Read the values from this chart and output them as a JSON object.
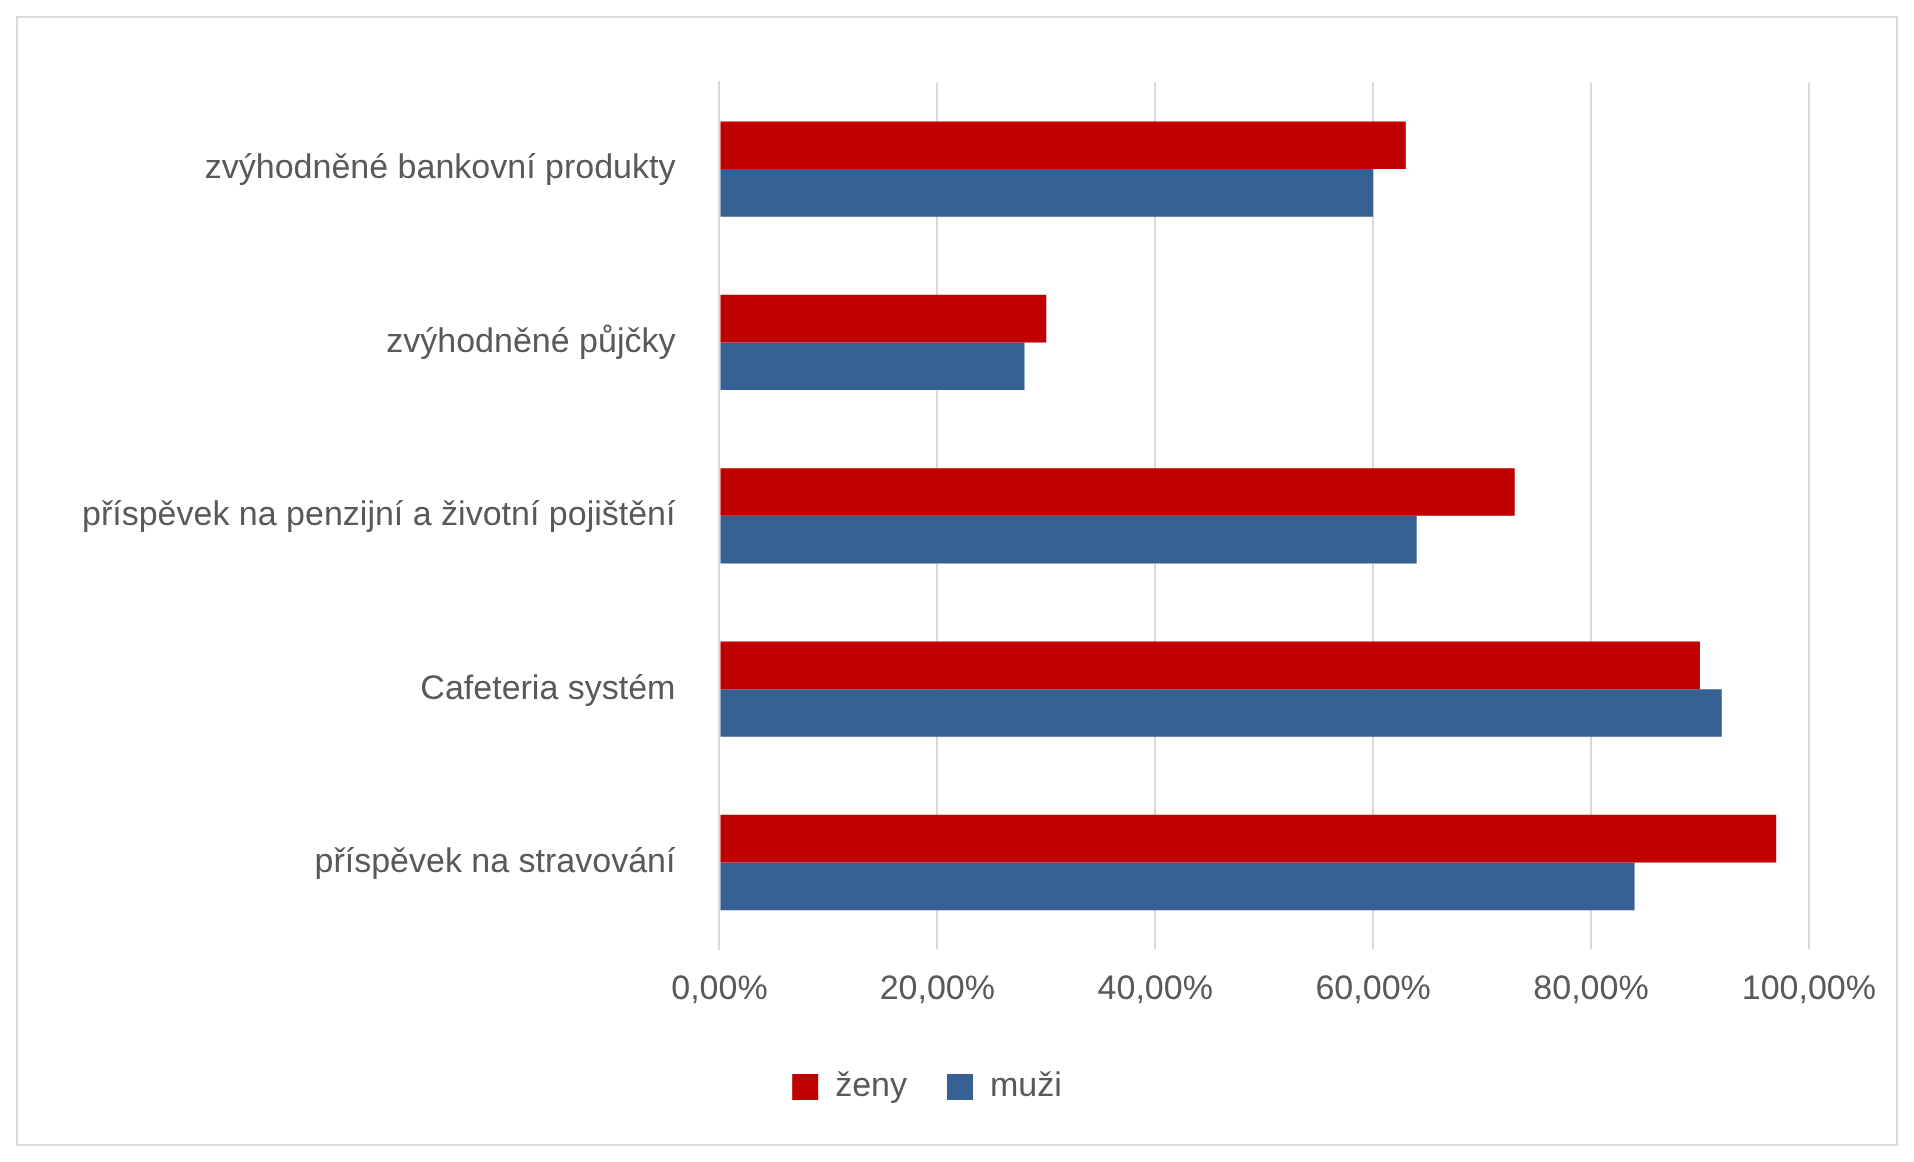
{
  "chart_data": {
    "type": "bar",
    "orientation": "horizontal",
    "categories": [
      "zvýhodněné bankovní produkty",
      "zvýhodněné půjčky",
      "příspěvek na penzijní a životní pojištění",
      "Cafeteria systém",
      "příspěvek na stravování"
    ],
    "series": [
      {
        "name": "ženy",
        "color": "#c00000",
        "values": [
          63,
          30,
          73,
          90,
          97
        ]
      },
      {
        "name": "muži",
        "color": "#376092",
        "values": [
          60,
          28,
          64,
          92,
          84
        ]
      }
    ],
    "xlim": [
      0,
      100
    ],
    "xticks": [
      {
        "value": 0,
        "label": "0,00%"
      },
      {
        "value": 20,
        "label": "20,00%"
      },
      {
        "value": 40,
        "label": "40,00%"
      },
      {
        "value": 60,
        "label": "60,00%"
      },
      {
        "value": 80,
        "label": "80,00%"
      },
      {
        "value": 100,
        "label": "100,00%"
      }
    ],
    "grid": "x",
    "legend": "bottom"
  }
}
